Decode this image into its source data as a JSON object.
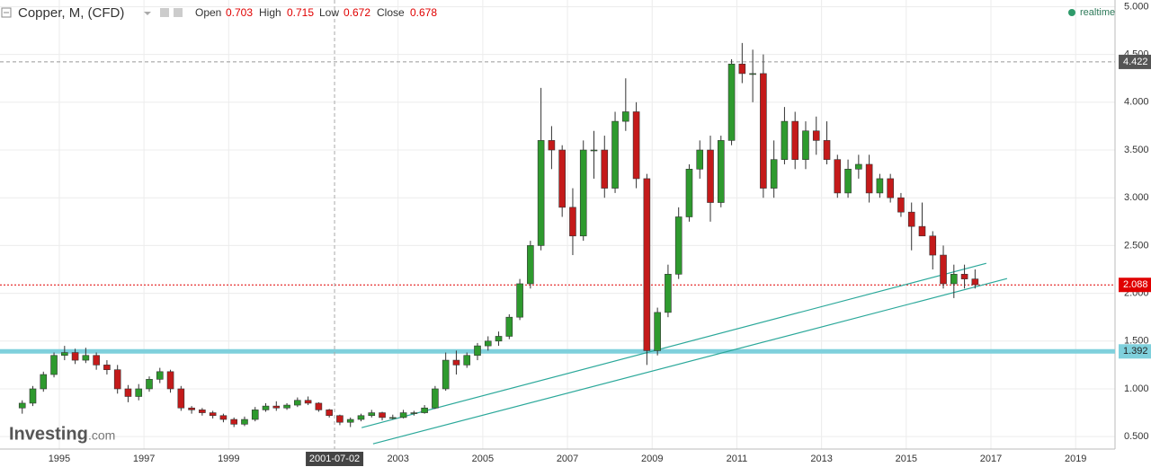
{
  "header": {
    "title": "Copper, M, (CFD)",
    "open_label": "Open",
    "open": 0.703,
    "high_label": "High",
    "high": 0.715,
    "low_label": "Low",
    "low": 0.672,
    "close_label": "Close",
    "close": 0.678,
    "status": "realtime"
  },
  "logo": {
    "name": "Investing",
    "suffix": ".com"
  },
  "chart_data": {
    "type": "candlestick",
    "up_color": "#2e9a2e",
    "down_color": "#c41a1a",
    "grid": true,
    "xlim": [
      1993.6,
      2019.93
    ],
    "ylim": [
      0.37,
      5.07
    ],
    "xticks": [
      1995,
      1997,
      1999,
      2003,
      2005,
      2007,
      2009,
      2011,
      2013,
      2015,
      2017,
      2019
    ],
    "yticks": [
      {
        "value": 0.5,
        "label": "0.500"
      },
      {
        "value": 1,
        "label": "1.000"
      },
      {
        "value": 1.5,
        "label": "1.500"
      },
      {
        "value": 2,
        "label": "2.000"
      },
      {
        "value": 2.5,
        "label": "2.500"
      },
      {
        "value": 3,
        "label": "3.000"
      },
      {
        "value": 3.5,
        "label": "3.500"
      },
      {
        "value": 4,
        "label": "4.000"
      },
      {
        "value": 4.5,
        "label": "4.500"
      },
      {
        "value": 5,
        "label": "5.000"
      }
    ],
    "crosshair": {
      "x": 2001.5,
      "label": "2001-07-02",
      "y": 4.422
    },
    "levels": [
      {
        "value": 4.422,
        "color": "#999999",
        "style": "dashed",
        "label_bg": "#555555"
      },
      {
        "value": 2.088,
        "color": "#e00000",
        "style": "dotted",
        "label_bg": "#e00000"
      },
      {
        "value": 1.392,
        "color": "#7fd0dc",
        "style": "thick",
        "label_bg": "#7fd0dc"
      }
    ],
    "trendlines": [
      {
        "color": "#2ba89a",
        "x": [
          2002.14,
          2016.89
        ],
        "y": [
          0.594,
          2.314
        ]
      },
      {
        "color": "#2ba89a",
        "x": [
          2002.41,
          2017.38
        ],
        "y": [
          0.425,
          2.154
        ]
      }
    ],
    "x": [
      1994.125,
      1994.375,
      1994.625,
      1994.875,
      1995.125,
      1995.375,
      1995.625,
      1995.875,
      1996.125,
      1996.375,
      1996.625,
      1996.875,
      1997.125,
      1997.375,
      1997.625,
      1997.875,
      1998.125,
      1998.375,
      1998.625,
      1998.875,
      1999.125,
      1999.375,
      1999.625,
      1999.875,
      2000.125,
      2000.375,
      2000.625,
      2000.875,
      2001.125,
      2001.375,
      2001.625,
      2001.875,
      2002.125,
      2002.375,
      2002.625,
      2002.875,
      2003.125,
      2003.375,
      2003.625,
      2003.875,
      2004.125,
      2004.375,
      2004.625,
      2004.875,
      2005.125,
      2005.375,
      2005.625,
      2005.875,
      2006.125,
      2006.375,
      2006.625,
      2006.875,
      2007.125,
      2007.375,
      2007.625,
      2007.875,
      2008.125,
      2008.375,
      2008.625,
      2008.875,
      2009.125,
      2009.375,
      2009.625,
      2009.875,
      2010.125,
      2010.375,
      2010.625,
      2010.875,
      2011.125,
      2011.375,
      2011.625,
      2011.875,
      2012.125,
      2012.375,
      2012.625,
      2012.875,
      2013.125,
      2013.375,
      2013.625,
      2013.875,
      2014.125,
      2014.375,
      2014.625,
      2014.875,
      2015.125,
      2015.375,
      2015.625,
      2015.875,
      2016.125,
      2016.375,
      2016.625
    ],
    "open": [
      0.8,
      0.85,
      1.0,
      1.15,
      1.35,
      1.38,
      1.3,
      1.35,
      1.25,
      1.2,
      1.0,
      0.92,
      1.0,
      1.1,
      1.18,
      1.0,
      0.8,
      0.78,
      0.75,
      0.72,
      0.68,
      0.63,
      0.68,
      0.78,
      0.82,
      0.8,
      0.83,
      0.88,
      0.85,
      0.78,
      0.72,
      0.65,
      0.68,
      0.72,
      0.75,
      0.7,
      0.7,
      0.75,
      0.75,
      0.8,
      1.0,
      1.3,
      1.25,
      1.35,
      1.45,
      1.5,
      1.55,
      1.75,
      2.1,
      2.5,
      3.6,
      3.5,
      2.9,
      2.6,
      3.5,
      3.5,
      3.1,
      3.8,
      3.9,
      3.2,
      1.4,
      1.8,
      2.2,
      2.8,
      3.3,
      3.5,
      2.95,
      3.6,
      4.4,
      4.3,
      4.3,
      3.1,
      3.4,
      3.8,
      3.4,
      3.7,
      3.6,
      3.4,
      3.05,
      3.3,
      3.35,
      3.05,
      3.2,
      3.0,
      2.85,
      2.7,
      2.6,
      2.4,
      2.1,
      2.2,
      2.15
    ],
    "high": [
      0.88,
      1.03,
      1.18,
      1.38,
      1.45,
      1.42,
      1.43,
      1.38,
      1.3,
      1.25,
      1.04,
      1.05,
      1.13,
      1.22,
      1.2,
      1.03,
      0.82,
      0.8,
      0.77,
      0.74,
      0.7,
      0.71,
      0.81,
      0.85,
      0.87,
      0.85,
      0.91,
      0.92,
      0.86,
      0.79,
      0.73,
      0.7,
      0.74,
      0.78,
      0.76,
      0.73,
      0.78,
      0.77,
      0.83,
      1.03,
      1.38,
      1.4,
      1.38,
      1.48,
      1.55,
      1.6,
      1.78,
      2.15,
      2.55,
      4.15,
      3.75,
      3.55,
      3.1,
      3.6,
      3.7,
      3.65,
      3.9,
      4.25,
      4.0,
      3.25,
      1.85,
      2.3,
      2.9,
      3.35,
      3.6,
      3.65,
      3.65,
      4.45,
      4.62,
      4.55,
      4.5,
      3.6,
      3.95,
      3.9,
      3.8,
      3.85,
      3.8,
      3.45,
      3.4,
      3.45,
      3.45,
      3.25,
      3.25,
      3.05,
      2.95,
      2.95,
      2.65,
      2.5,
      2.3,
      2.3,
      2.25
    ],
    "low": [
      0.74,
      0.82,
      0.97,
      1.12,
      1.3,
      1.26,
      1.27,
      1.2,
      1.15,
      0.95,
      0.86,
      0.88,
      0.97,
      1.06,
      0.96,
      0.77,
      0.74,
      0.72,
      0.69,
      0.65,
      0.6,
      0.61,
      0.66,
      0.76,
      0.77,
      0.78,
      0.81,
      0.83,
      0.76,
      0.7,
      0.62,
      0.6,
      0.66,
      0.7,
      0.67,
      0.68,
      0.69,
      0.72,
      0.74,
      0.79,
      0.98,
      1.15,
      1.22,
      1.3,
      1.4,
      1.45,
      1.52,
      1.72,
      2.05,
      2.45,
      3.3,
      2.8,
      2.4,
      2.55,
      3.2,
      3.0,
      3.05,
      3.7,
      3.1,
      1.25,
      1.35,
      1.75,
      2.15,
      2.75,
      3.2,
      2.75,
      2.9,
      3.55,
      4.2,
      4.0,
      3.0,
      3.0,
      3.35,
      3.3,
      3.3,
      3.45,
      3.35,
      3.0,
      3.0,
      3.2,
      2.95,
      3.0,
      2.95,
      2.8,
      2.45,
      2.6,
      2.25,
      2.05,
      1.95,
      2.05,
      2.05
    ],
    "close": [
      0.85,
      1.0,
      1.15,
      1.35,
      1.38,
      1.3,
      1.35,
      1.25,
      1.2,
      1.0,
      0.92,
      1.0,
      1.1,
      1.18,
      1.0,
      0.8,
      0.78,
      0.75,
      0.72,
      0.68,
      0.63,
      0.68,
      0.78,
      0.82,
      0.8,
      0.83,
      0.88,
      0.85,
      0.78,
      0.72,
      0.65,
      0.68,
      0.72,
      0.75,
      0.7,
      0.7,
      0.75,
      0.75,
      0.8,
      1.0,
      1.3,
      1.25,
      1.35,
      1.45,
      1.5,
      1.55,
      1.75,
      2.1,
      2.5,
      3.6,
      3.5,
      2.9,
      2.6,
      3.5,
      3.5,
      3.1,
      3.8,
      3.9,
      3.2,
      1.4,
      1.8,
      2.2,
      2.8,
      3.3,
      3.5,
      2.95,
      3.6,
      4.4,
      4.3,
      4.3,
      3.1,
      3.4,
      3.8,
      3.4,
      3.7,
      3.6,
      3.4,
      3.05,
      3.3,
      3.35,
      3.05,
      3.2,
      3.0,
      2.85,
      2.7,
      2.6,
      2.4,
      2.1,
      2.2,
      2.15,
      2.09
    ]
  }
}
